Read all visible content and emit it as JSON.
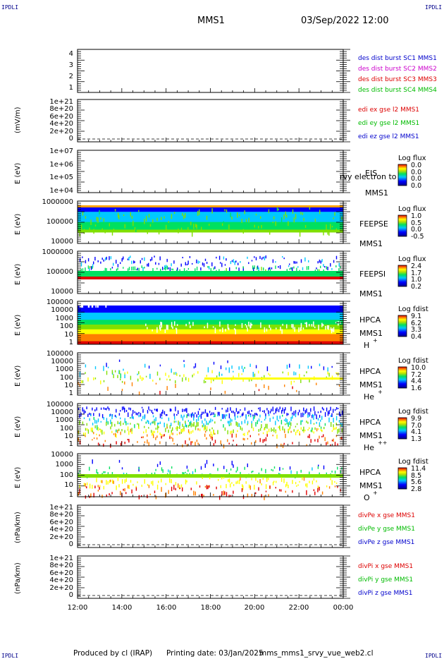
{
  "corner_label": "IPDLI",
  "header": {
    "spacecraft": "MMS1",
    "datetime": "03/Sep/2022 12:00"
  },
  "footer": {
    "produced_by": "Produced by cl (IRAP)",
    "printing_date": "Printing date: 03/Jan/2025",
    "filename": "mms_mms1_srvy_vue_web2.cl"
  },
  "x_axis": {
    "ticks": [
      "12:00",
      "14:00",
      "16:00",
      "18:00",
      "20:00",
      "22:00",
      "00:00"
    ]
  },
  "panels": [
    {
      "id": "burst",
      "ylabel": "",
      "yticks": [
        "4",
        "3",
        "2",
        "1"
      ],
      "legend": [
        {
          "text": "des dist burst SC1 MMS1",
          "color": "#0000cc"
        },
        {
          "text": "des dist burst SC2 MMS2",
          "color": "#cc00cc"
        },
        {
          "text": "des dist burst SC3 MMS3",
          "color": "#dd0000"
        },
        {
          "text": "des dist burst SC4 MMS4",
          "color": "#00bb00"
        }
      ]
    },
    {
      "id": "edi",
      "ylabel": "(mV/m)",
      "yticks": [
        "1e+21",
        "8e+20",
        "6e+20",
        "4e+20",
        "2e+20",
        "0"
      ],
      "legend": [
        {
          "text": "edi ex gse l2 MMS1",
          "color": "#dd0000"
        },
        {
          "text": "edi ey gse l2 MMS1",
          "color": "#00bb00"
        },
        {
          "text": "edi ez gse l2 MMS1",
          "color": "#0000cc"
        }
      ]
    },
    {
      "id": "eis",
      "ylabel": "E (eV)",
      "yticks": [
        "1e+07",
        "1e+06",
        "1e+05",
        "1e+04"
      ],
      "side": [
        "EIS",
        "MMS1"
      ],
      "overlay": "rvy electron to",
      "colorbar": {
        "title": "Log flux",
        "values": [
          "0.0",
          "0.0",
          "0.0",
          "0.0"
        ]
      }
    },
    {
      "id": "feepse",
      "ylabel": "E (eV)",
      "yticks": [
        "1000000",
        "100000",
        "10000"
      ],
      "side": [
        "FEEPSE",
        "MMS1"
      ],
      "colorbar": {
        "title": "Log flux",
        "values": [
          "1.0",
          "0.5",
          "0.0",
          "-0.5"
        ]
      }
    },
    {
      "id": "feepsi",
      "ylabel": "E (eV)",
      "yticks": [
        "1000000",
        "100000",
        "10000"
      ],
      "side": [
        "FEEPSI",
        "MMS1"
      ],
      "colorbar": {
        "title": "Log flux",
        "values": [
          "2.4",
          "1.7",
          "1.0",
          "0.2"
        ]
      }
    },
    {
      "id": "hpca_h",
      "ylabel": "E (eV)",
      "yticks": [
        "100000",
        "10000",
        "1000",
        "100",
        "10",
        "1"
      ],
      "side": [
        "HPCA",
        "MMS1"
      ],
      "species": "H",
      "charge": "+",
      "colorbar": {
        "title": "Log fdist",
        "values": [
          "9.1",
          "6.2",
          "3.3",
          "0.4"
        ]
      }
    },
    {
      "id": "hpca_he",
      "ylabel": "E (eV)",
      "yticks": [
        "100000",
        "10000",
        "1000",
        "100",
        "10",
        "1"
      ],
      "side": [
        "HPCA",
        "MMS1"
      ],
      "species": "He",
      "charge": "+",
      "colorbar": {
        "title": "Log fdist",
        "values": [
          "10.0",
          "7.2",
          "4.4",
          "1.6"
        ]
      }
    },
    {
      "id": "hpca_hepp",
      "ylabel": "E (eV)",
      "yticks": [
        "100000",
        "10000",
        "1000",
        "100",
        "10",
        "1"
      ],
      "side": [
        "HPCA",
        "MMS1"
      ],
      "species": "He",
      "charge": "++",
      "colorbar": {
        "title": "Log fdist",
        "values": [
          "9.9",
          "7.0",
          "4.1",
          "1.3"
        ]
      }
    },
    {
      "id": "hpca_o",
      "ylabel": "E (eV)",
      "yticks": [
        "10000",
        "1000",
        "100",
        "10",
        "1"
      ],
      "side": [
        "HPCA",
        "MMS1"
      ],
      "species": "O",
      "charge": "+",
      "colorbar": {
        "title": "Log fdist",
        "values": [
          "11.4",
          "8.5",
          "5.6",
          "2.8"
        ]
      }
    },
    {
      "id": "divpe",
      "ylabel": "(nPa/km)",
      "yticks": [
        "1e+21",
        "8e+20",
        "6e+20",
        "4e+20",
        "2e+20",
        "0"
      ],
      "legend": [
        {
          "text": "divPe x gse MMS1",
          "color": "#dd0000"
        },
        {
          "text": "divPe y gse MMS1",
          "color": "#00bb00"
        },
        {
          "text": "divPe z gse MMS1",
          "color": "#0000cc"
        }
      ]
    },
    {
      "id": "divpi",
      "ylabel": "(nPa/km)",
      "yticks": [
        "1e+21",
        "8e+20",
        "6e+20",
        "4e+20",
        "2e+20",
        "0"
      ],
      "legend": [
        {
          "text": "divPi x gse MMS1",
          "color": "#dd0000"
        },
        {
          "text": "divPi y gse MMS1",
          "color": "#00bb00"
        },
        {
          "text": "divPi z gse MMS1",
          "color": "#0000cc"
        }
      ]
    }
  ],
  "chart_data": [
    {
      "type": "line",
      "panel": "burst",
      "ylim": [
        0.5,
        4.5
      ],
      "series": [
        {
          "name": "des dist burst SC1 MMS1",
          "values": []
        },
        {
          "name": "des dist burst SC2 MMS2",
          "values": []
        },
        {
          "name": "des dist burst SC3 MMS3",
          "values": []
        },
        {
          "name": "des dist burst SC4 MMS4",
          "values": []
        }
      ]
    },
    {
      "type": "line",
      "panel": "edi",
      "ylabel": "(mV/m)",
      "ylim": [
        0,
        1e+21
      ],
      "series": [
        {
          "name": "edi ex gse l2 MMS1",
          "values": []
        },
        {
          "name": "edi ey gse l2 MMS1",
          "values": []
        },
        {
          "name": "edi ez gse l2 MMS1",
          "values": []
        }
      ]
    },
    {
      "type": "heatmap",
      "panel": "eis",
      "ylabel": "E (eV)",
      "yscale": "log",
      "ylim": [
        10000.0,
        10000000.0
      ],
      "zlabel": "Log flux"
    },
    {
      "type": "heatmap",
      "panel": "feepse",
      "ylabel": "E (eV)",
      "yscale": "log",
      "ylim": [
        10000.0,
        1000000.0
      ],
      "zlabel": "Log flux",
      "zrange": [
        -0.5,
        1.0
      ]
    },
    {
      "type": "heatmap",
      "panel": "feepsi",
      "ylabel": "E (eV)",
      "yscale": "log",
      "ylim": [
        10000.0,
        1000000.0
      ],
      "zlabel": "Log flux",
      "zrange": [
        0.2,
        2.4
      ]
    },
    {
      "type": "heatmap",
      "panel": "hpca_h",
      "ylabel": "E (eV)",
      "yscale": "log",
      "ylim": [
        1,
        100000.0
      ],
      "zlabel": "Log fdist",
      "zrange": [
        0.4,
        9.1
      ]
    },
    {
      "type": "heatmap",
      "panel": "hpca_he",
      "ylabel": "E (eV)",
      "yscale": "log",
      "ylim": [
        1,
        100000.0
      ],
      "zlabel": "Log fdist",
      "zrange": [
        1.6,
        10.0
      ]
    },
    {
      "type": "heatmap",
      "panel": "hpca_hepp",
      "ylabel": "E (eV)",
      "yscale": "log",
      "ylim": [
        1,
        100000.0
      ],
      "zlabel": "Log fdist",
      "zrange": [
        1.3,
        9.9
      ]
    },
    {
      "type": "heatmap",
      "panel": "hpca_o",
      "ylabel": "E (eV)",
      "yscale": "log",
      "ylim": [
        1,
        10000.0
      ],
      "zlabel": "Log fdist",
      "zrange": [
        2.8,
        11.4
      ]
    },
    {
      "type": "line",
      "panel": "divpe",
      "ylabel": "(nPa/km)",
      "ylim": [
        0,
        1e+21
      ],
      "series": [
        {
          "name": "divPe x gse MMS1",
          "values": []
        },
        {
          "name": "divPe y gse MMS1",
          "values": []
        },
        {
          "name": "divPe z gse MMS1",
          "values": []
        }
      ]
    },
    {
      "type": "line",
      "panel": "divpi",
      "ylabel": "(nPa/km)",
      "ylim": [
        0,
        1e+21
      ],
      "series": [
        {
          "name": "divPi x gse MMS1",
          "values": []
        },
        {
          "name": "divPi y gse MMS1",
          "values": []
        },
        {
          "name": "divPi z gse MMS1",
          "values": []
        }
      ]
    }
  ]
}
